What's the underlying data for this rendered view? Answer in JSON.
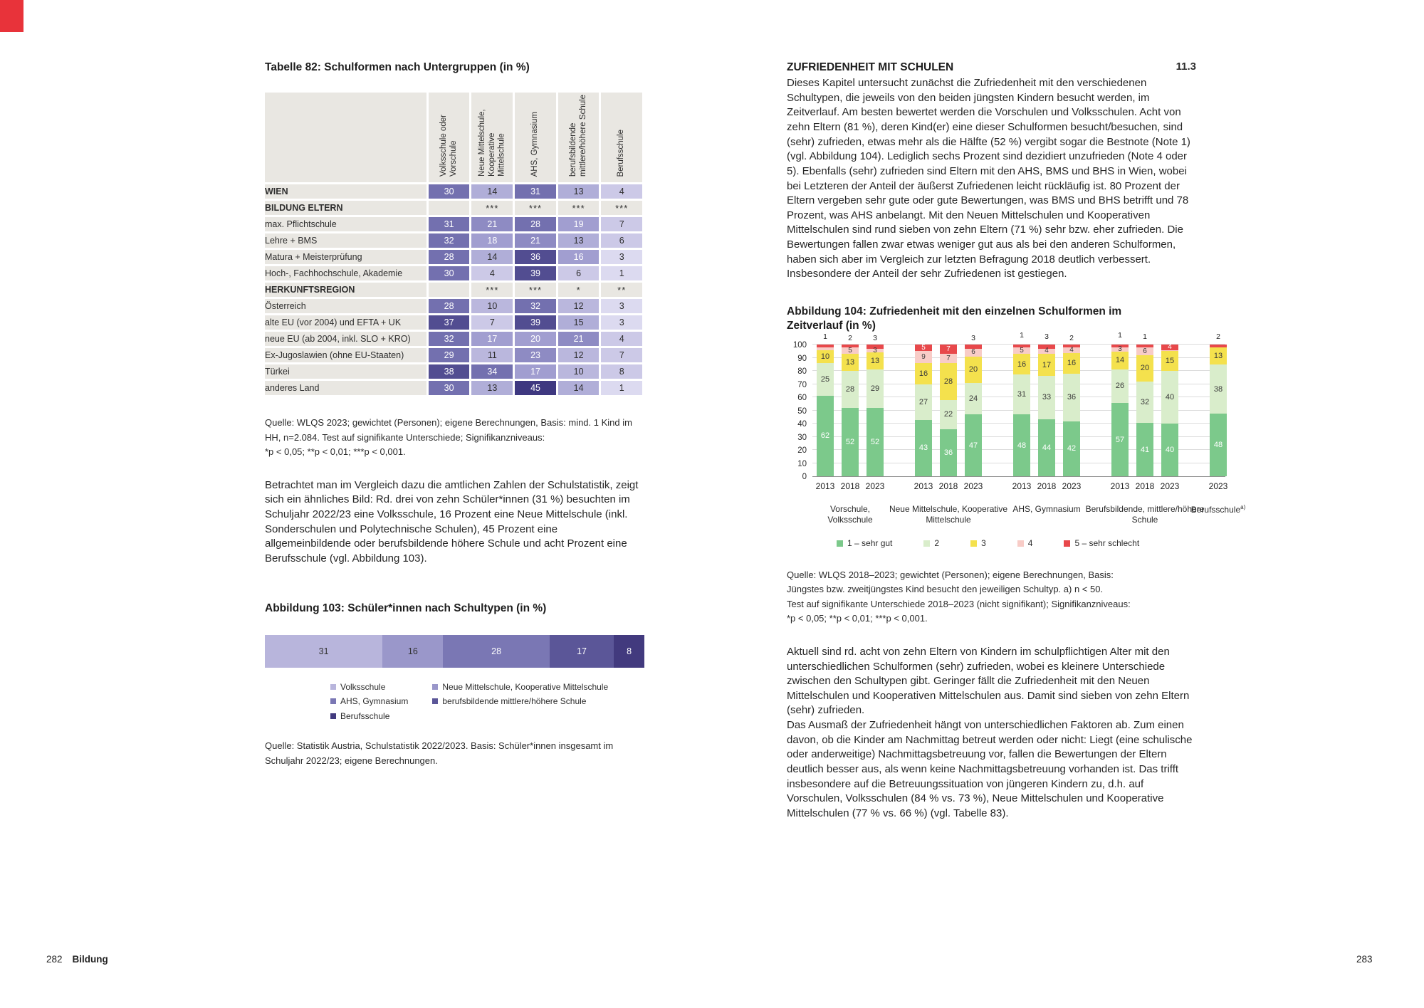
{
  "page": {
    "section_title": "ZUFRIEDENHEIT MIT SCHULEN",
    "section_number": "11.3",
    "left_footer": {
      "page_number": "282",
      "chapter": "Bildung"
    },
    "right_footer": {
      "page_number": "283"
    },
    "corner_tab_color": "#e8333a"
  },
  "left": {
    "table_source": "Quelle: WLQS 2023; gewichtet (Personen); eigene Berechnungen, Basis: mind. 1 Kind im\nHH, n=2.084. Test auf signifikante Unterschiede; Signifikanzniveaus:\n*p < 0,05; **p < 0,01; ***p < 0,001.",
    "intro_paragraph": "Betrachtet man im Vergleich dazu die amtlichen Zahlen der Schulstatistik, zeigt sich ein ähnliches Bild: Rd. drei von zehn Schüler*innen (31 %) besuchten im Schuljahr 2022/23 eine Volksschule, 16 Prozent eine Neue Mittelschule (inkl. Sonderschulen und Polytechnische Schulen), 45 Prozent eine allgemeinbildende oder berufsbildende höhere Schule und acht Prozent eine Berufsschule (vgl. Abbildung 103).",
    "fig103_source": "Quelle: Statistik Austria, Schulstatistik 2022/2023. Basis: Schüler*innen insgesamt im\nSchuljahr 2022/23; eigene Berechnungen."
  },
  "right": {
    "para1": "Dieses Kapitel untersucht zunächst die Zufriedenheit mit den verschiedenen Schultypen, die jeweils von den beiden jüngsten Kindern besucht werden, im Zeitverlauf. Am besten bewertet werden die Vorschulen und Volksschulen. Acht von zehn Eltern (81 %), deren Kind(er) eine dieser Schulformen besucht/besuchen, sind (sehr) zufrieden, etwas mehr als die Hälfte (52 %) vergibt sogar die Bestnote (Note 1) (vgl. Abbildung 104). Lediglich sechs Prozent sind dezidiert unzufrieden (Note 4 oder 5). Ebenfalls (sehr) zufrieden sind Eltern mit den AHS, BMS und BHS in Wien, wobei bei Letzteren der Anteil der äußerst Zufriedenen leicht rückläufig ist. 80 Prozent der Eltern vergeben sehr gute oder gute Bewertungen, was BMS und BHS betrifft und 78 Prozent, was AHS anbelangt. Mit den Neuen Mittelschulen und Kooperativen Mittelschulen sind rund sieben von zehn Eltern (71 %) sehr bzw. eher zufrieden. Die Bewertungen fallen zwar etwas weniger gut aus als bei den anderen Schulformen, haben sich aber im Vergleich zur letzten Befragung 2018 deutlich verbessert. Insbesondere der Anteil der sehr Zufriedenen ist gestiegen.",
    "fig104_source": "Quelle: WLQS 2018–2023; gewichtet (Personen); eigene Berechnungen, Basis:\nJüngstes bzw. zweitjüngstes Kind besucht den jeweiligen Schultyp. a) n < 50.\nTest auf signifikante Unterschiede 2018–2023 (nicht signifikant); Signifikanzniveaus:\n*p < 0,05; **p < 0,01; ***p < 0,001.",
    "para2": "Aktuell sind rd. acht von zehn Eltern von Kindern im schulpflichtigen Alter mit den unterschiedlichen Schulformen (sehr) zufrieden, wobei es kleinere Unterschiede zwischen den Schultypen gibt. Geringer fällt die Zufriedenheit mit den Neuen Mittelschulen und Kooperativen Mittelschulen aus. Damit sind sieben von zehn Eltern (sehr) zufrieden.\nDas Ausmaß der Zufriedenheit hängt von unterschiedlichen Faktoren ab. Zum einen davon, ob die Kinder am Nachmittag betreut werden oder nicht: Liegt (eine schulische oder anderweitige) Nachmittagsbetreuung vor, fallen die Bewertungen der Eltern deutlich besser aus, als wenn keine Nachmittagsbetreuung vorhanden ist. Das trifft insbesondere auf die Betreuungssituation von jüngeren Kindern zu, d.h. auf Vorschulen, Volksschulen (84 % vs. 73 %), Neue Mittelschulen und Kooperative Mittelschulen (77 % vs. 66 %) (vgl. Tabelle 83)."
  },
  "chart_data": [
    {
      "id": "tabelle82",
      "type": "table",
      "title": "Tabelle 82: Schulformen nach Untergruppen (in %)",
      "columns": [
        "Volksschule oder Vorschule",
        "Neue Mittelschule, Kooperative Mittelschule",
        "AHS, Gymnasium",
        "berufsbildende mittlere/höhere Schule",
        "Berufsschule"
      ],
      "rows": [
        {
          "label": "WIEN",
          "bold": true,
          "type": "data",
          "values": [
            30,
            14,
            31,
            13,
            4
          ]
        },
        {
          "label": "BILDUNG ELTERN",
          "bold": true,
          "type": "section",
          "values": [
            "",
            "***",
            "***",
            "***",
            "***"
          ]
        },
        {
          "label": "max. Pflichtschule",
          "type": "data",
          "values": [
            31,
            21,
            28,
            19,
            7
          ]
        },
        {
          "label": "Lehre + BMS",
          "type": "data",
          "values": [
            32,
            18,
            21,
            13,
            6
          ]
        },
        {
          "label": "Matura + Meisterprüfung",
          "type": "data",
          "values": [
            28,
            14,
            36,
            16,
            3
          ]
        },
        {
          "label": "Hoch-, Fachhochschule, Akademie",
          "type": "data",
          "values": [
            30,
            4,
            39,
            6,
            1
          ]
        },
        {
          "label": "HERKUNFTSREGION",
          "bold": true,
          "type": "section",
          "values": [
            "",
            "***",
            "***",
            "*",
            "**"
          ]
        },
        {
          "label": "Österreich",
          "type": "data",
          "values": [
            28,
            10,
            32,
            12,
            3
          ]
        },
        {
          "label": "alte EU (vor 2004) und EFTA + UK",
          "type": "data",
          "values": [
            37,
            7,
            39,
            15,
            3
          ]
        },
        {
          "label": "neue EU (ab 2004, inkl. SLO + KRO)",
          "type": "data",
          "values": [
            32,
            17,
            20,
            21,
            4
          ]
        },
        {
          "label": "Ex-Jugoslawien (ohne EU-Staaten)",
          "type": "data",
          "values": [
            29,
            11,
            23,
            12,
            7
          ]
        },
        {
          "label": "Türkei",
          "type": "data",
          "values": [
            38,
            34,
            17,
            10,
            8
          ]
        },
        {
          "label": "anderes Land",
          "type": "data",
          "values": [
            30,
            13,
            45,
            14,
            1
          ]
        }
      ],
      "color_scale": [
        {
          "min": 45,
          "bg": "#3e3880"
        },
        {
          "min": 36,
          "bg": "#524d91"
        },
        {
          "min": 28,
          "bg": "#7370af"
        },
        {
          "min": 21,
          "bg": "#8e8bc3"
        },
        {
          "min": 16,
          "bg": "#a19ed0"
        },
        {
          "min": 13,
          "bg": "#b0aed8"
        },
        {
          "min": 10,
          "bg": "#bab7dd"
        },
        {
          "min": 4,
          "bg": "#ccc9e7"
        },
        {
          "min": 0,
          "bg": "#dcdaf0"
        }
      ],
      "white_text_min": 16
    },
    {
      "id": "abb103",
      "type": "bar",
      "stacked": true,
      "orientation": "horizontal",
      "title": "Abbildung 103: Schüler*innen nach Schultypen (in %)",
      "categories": [
        "Volksschule",
        "Neue Mittelschule, Kooperative Mittelschule",
        "AHS, Gymnasium",
        "berufsbildende mittlere/höhere Schule",
        "Berufsschule"
      ],
      "values": [
        31,
        16,
        28,
        17,
        8
      ],
      "colors": [
        "#b8b5dc",
        "#9a97ca",
        "#7a77b4",
        "#5b5698",
        "#423a7e"
      ],
      "legend_columns": [
        [
          0,
          2,
          4
        ],
        [
          1,
          3
        ]
      ]
    },
    {
      "id": "abb104",
      "type": "bar",
      "stacked": true,
      "title": "Abbildung 104: Zufriedenheit mit den einzelnen Schulformen im Zeitverlauf (in %)",
      "ylim": [
        0,
        100
      ],
      "ytick_step": 10,
      "grid": true,
      "legend": [
        "1 – sehr gut",
        "2",
        "3",
        "4",
        "5 – sehr schlecht"
      ],
      "colors": [
        "#7cc98b",
        "#d9edcb",
        "#f4e14d",
        "#f8ccc7",
        "#e8484b"
      ],
      "groups": [
        {
          "label": "Vorschule, Volksschule",
          "bars": [
            {
              "x": "2013",
              "values": [
                62,
                25,
                10,
                2,
                1
              ]
            },
            {
              "x": "2018",
              "values": [
                52,
                28,
                13,
                5,
                2
              ]
            },
            {
              "x": "2023",
              "values": [
                52,
                29,
                13,
                3,
                3
              ]
            }
          ]
        },
        {
          "label": "Neue Mittelschule, Kooperative Mittelschule",
          "bars": [
            {
              "x": "2013",
              "values": [
                43,
                27,
                16,
                9,
                5
              ]
            },
            {
              "x": "2018",
              "values": [
                36,
                22,
                28,
                7,
                7
              ]
            },
            {
              "x": "2023",
              "values": [
                47,
                24,
                20,
                6,
                3
              ]
            }
          ]
        },
        {
          "label": "AHS, Gymnasium",
          "bars": [
            {
              "x": "2013",
              "values": [
                48,
                31,
                16,
                5,
                1
              ]
            },
            {
              "x": "2018",
              "values": [
                44,
                33,
                17,
                4,
                3
              ]
            },
            {
              "x": "2023",
              "values": [
                42,
                36,
                16,
                4,
                2
              ]
            }
          ]
        },
        {
          "label": "Berufsbildende, mittlere/höhere Schule",
          "bars": [
            {
              "x": "2013",
              "values": [
                57,
                26,
                14,
                3,
                1
              ]
            },
            {
              "x": "2018",
              "values": [
                41,
                32,
                20,
                6,
                1
              ]
            },
            {
              "x": "2023",
              "values": [
                40,
                40,
                15,
                1,
                4
              ]
            }
          ]
        },
        {
          "label": "Berufsschule",
          "label_sup": "a)",
          "bars": [
            {
              "x": "2023",
              "values": [
                48,
                38,
                13,
                0,
                2
              ]
            }
          ]
        }
      ]
    }
  ]
}
